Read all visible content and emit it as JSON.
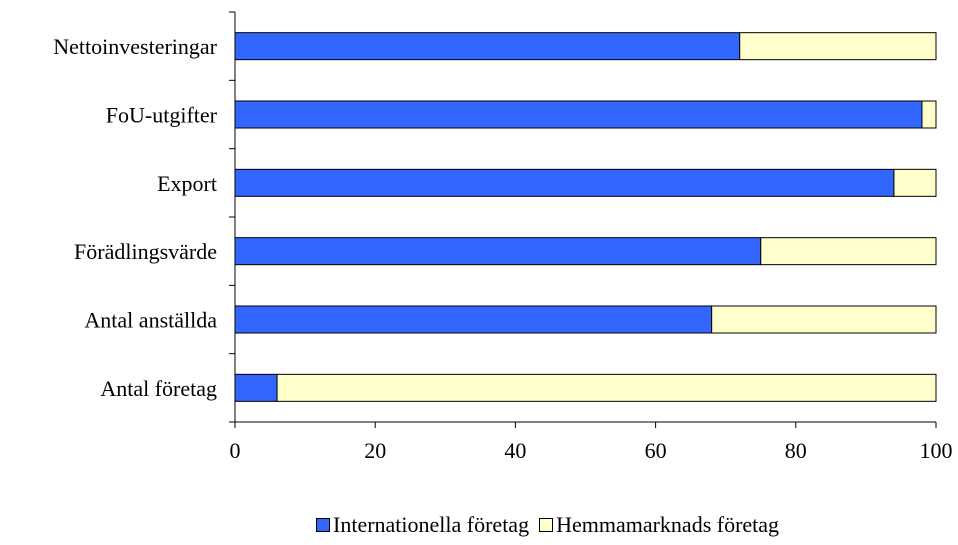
{
  "chart_data": {
    "type": "bar",
    "orientation": "horizontal",
    "stacked": true,
    "categories": [
      "Nettoinvesteringar",
      "FoU-utgifter",
      "Export",
      "Förädlingsvärde",
      "Antal anställda",
      "Antal företag"
    ],
    "series": [
      {
        "name": "Internationella företag",
        "color": "#3366ff",
        "values": [
          72,
          98,
          94,
          75,
          68,
          6
        ]
      },
      {
        "name": "Hemmamarknads företag",
        "color": "#ffffcc",
        "values": [
          28,
          2,
          6,
          25,
          32,
          94
        ]
      }
    ],
    "xlim": [
      0,
      100
    ],
    "xticks": [
      "0",
      "20",
      "40",
      "60",
      "80",
      "100"
    ],
    "grid": false,
    "legend_position": "bottom"
  }
}
